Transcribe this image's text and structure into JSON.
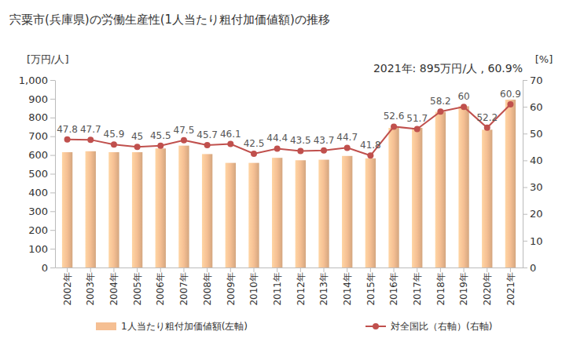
{
  "chart_data": {
    "type": "bar",
    "title": "宍粟市(兵庫県)の労働生産性(1人当たり粗付加価値額)の推移",
    "annotation": "2021年: 895万円/人 , 60.9%",
    "y_label": "[万円/人]",
    "y2_label": "[%]",
    "categories": [
      "2002年",
      "2003年",
      "2004年",
      "2005年",
      "2006年",
      "2007年",
      "2008年",
      "2009年",
      "2010年",
      "2011年",
      "2012年",
      "2013年",
      "2014年",
      "2015年",
      "2016年",
      "2017年",
      "2018年",
      "2019年",
      "2020年",
      "2021年"
    ],
    "series": [
      {
        "name": "1人当たり粗付加価値額(左軸)",
        "type": "bar",
        "color": "#f5bf93",
        "values": [
          615,
          620,
          615,
          615,
          635,
          650,
          605,
          558,
          558,
          585,
          572,
          575,
          595,
          582,
          745,
          745,
          830,
          860,
          735,
          895
        ]
      },
      {
        "name": "対全国比（右軸）(右軸)",
        "type": "line",
        "axis": "y2",
        "color": "#c0504d",
        "marker": "circle",
        "data_labels": true,
        "values": [
          47.8,
          47.7,
          45.9,
          45.0,
          45.5,
          47.5,
          45.7,
          46.1,
          42.5,
          44.4,
          43.5,
          43.7,
          44.7,
          41.8,
          52.6,
          51.7,
          58.2,
          60.0,
          52.2,
          60.9
        ]
      }
    ],
    "ylim": [
      0,
      1000
    ],
    "yticks": [
      0,
      100,
      200,
      300,
      400,
      500,
      600,
      700,
      800,
      900,
      {
        "value": 1000,
        "label": "1,000"
      }
    ],
    "y2lim": [
      0,
      70
    ],
    "y2ticks": [
      0,
      10,
      20,
      30,
      40,
      50,
      60,
      70
    ],
    "grid": false,
    "legend": "bottom"
  }
}
